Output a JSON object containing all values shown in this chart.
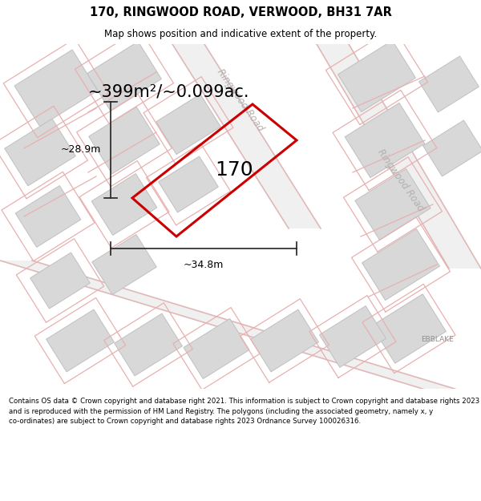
{
  "title": "170, RINGWOOD ROAD, VERWOOD, BH31 7AR",
  "subtitle": "Map shows position and indicative extent of the property.",
  "area_label": "~399m²/~0.099ac.",
  "property_number": "170",
  "width_label": "~34.8m",
  "height_label": "~28.9m",
  "footer": "Contains OS data © Crown copyright and database right 2021. This information is subject to Crown copyright and database rights 2023 and is reproduced with the permission of HM Land Registry. The polygons (including the associated geometry, namely x, y co-ordinates) are subject to Crown copyright and database rights 2023 Ordnance Survey 100026316.",
  "bg_color": "#f2f2f2",
  "building_fill": "#d8d8d8",
  "building_edge": "#c0c0c0",
  "property_outline_color": "#cc0000",
  "property_lw": 2.2,
  "road_label_color": "#b0b0b0",
  "ebblake_label_color": "#909090",
  "dim_line_color": "#222222",
  "title_fontsize": 10.5,
  "subtitle_fontsize": 8.5,
  "area_label_fontsize": 15,
  "property_number_fontsize": 18,
  "dim_label_fontsize": 9,
  "road_label_fontsize": 8.5,
  "footer_fontsize": 6.2,
  "road_fill": "#ffffff",
  "road_edge": "#e0b8b8",
  "pink_line": "#e8b0b0",
  "pink_line_lw": 0.9
}
